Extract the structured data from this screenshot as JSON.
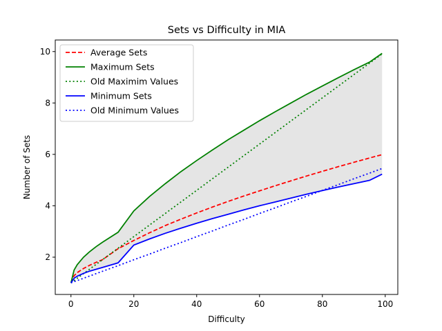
{
  "chart_data": {
    "type": "line",
    "title": "Sets vs Difficulty in MIA",
    "xlabel": "Difficulty",
    "ylabel": "Number of Sets",
    "xlim": [
      -5,
      104
    ],
    "ylim": [
      0.55,
      10.45
    ],
    "xticks": [
      0,
      20,
      40,
      60,
      80,
      100
    ],
    "yticks": [
      2,
      4,
      6,
      8,
      10
    ],
    "legend_position": "upper-left",
    "fill_between": {
      "lower": "Minimum Sets",
      "upper": "Maximum Sets",
      "color": "#e5e5e5"
    },
    "x": [
      0,
      1,
      2,
      4,
      6,
      8,
      10,
      15,
      20,
      25,
      30,
      35,
      40,
      45,
      50,
      55,
      60,
      65,
      70,
      75,
      80,
      85,
      90,
      95,
      99
    ],
    "series": [
      {
        "name": "Average Sets",
        "color": "#ff0000",
        "style": "dashed",
        "values": [
          1.0,
          1.28,
          1.4,
          1.56,
          1.69,
          1.8,
          1.9,
          2.33,
          2.65,
          2.95,
          3.23,
          3.48,
          3.72,
          3.95,
          4.17,
          4.38,
          4.58,
          4.78,
          4.97,
          5.16,
          5.34,
          5.52,
          5.69,
          5.86,
          5.99
        ]
      },
      {
        "name": "Maximum Sets",
        "color": "#008000",
        "style": "solid",
        "values": [
          1.0,
          1.5,
          1.71,
          2.0,
          2.22,
          2.41,
          2.58,
          2.97,
          3.8,
          4.36,
          4.86,
          5.33,
          5.76,
          6.17,
          6.57,
          6.94,
          7.31,
          7.66,
          8.0,
          8.34,
          8.66,
          8.98,
          9.29,
          9.59,
          9.93
        ]
      },
      {
        "name": "Old Maximim Values",
        "color": "#008000",
        "style": "dotted",
        "values": [
          1.0,
          1.09,
          1.18,
          1.36,
          1.54,
          1.72,
          1.9,
          2.35,
          2.8,
          3.25,
          3.7,
          4.15,
          4.6,
          5.05,
          5.5,
          5.95,
          6.4,
          6.85,
          7.3,
          7.75,
          8.2,
          8.65,
          9.1,
          9.55,
          9.91
        ]
      },
      {
        "name": "Minimum Sets",
        "color": "#0000ff",
        "style": "solid",
        "values": [
          1.0,
          1.18,
          1.26,
          1.37,
          1.46,
          1.53,
          1.6,
          1.78,
          2.47,
          2.71,
          2.93,
          3.13,
          3.32,
          3.5,
          3.67,
          3.84,
          4.0,
          4.15,
          4.3,
          4.45,
          4.59,
          4.73,
          4.86,
          4.99,
          5.23
        ]
      },
      {
        "name": "Old Minimum Values",
        "color": "#0000ff",
        "style": "dotted",
        "values": [
          1.0,
          1.05,
          1.09,
          1.18,
          1.27,
          1.36,
          1.45,
          1.67,
          1.9,
          2.12,
          2.35,
          2.57,
          2.8,
          3.02,
          3.25,
          3.47,
          3.7,
          3.92,
          4.15,
          4.37,
          4.6,
          4.82,
          5.05,
          5.27,
          5.45
        ]
      }
    ]
  }
}
